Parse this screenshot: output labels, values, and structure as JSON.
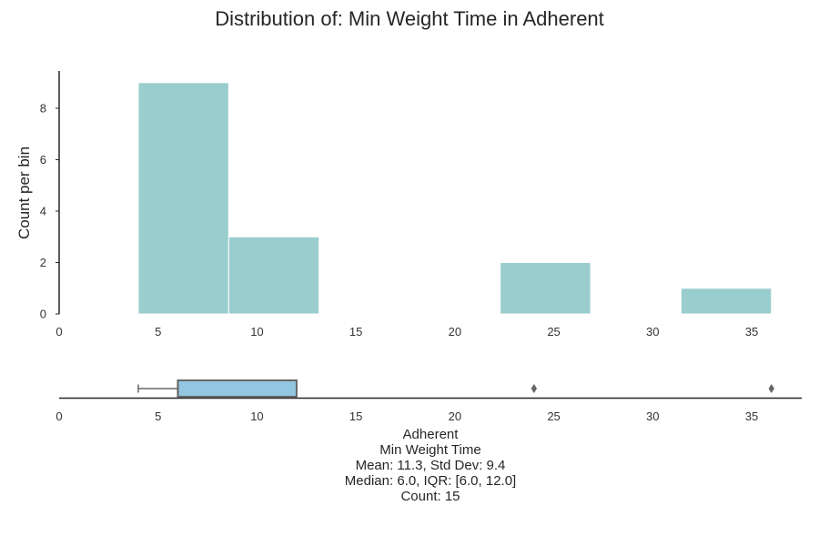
{
  "title": "Distribution of: Min Weight Time in Adherent",
  "colors": {
    "hist_bar": "#9acdcd",
    "box_fill": "#93c6e0",
    "box_edge": "#666666",
    "axis": "#262626"
  },
  "chart_data": [
    {
      "type": "histogram",
      "ylabel": "Count per bin",
      "xlim": [
        0,
        38
      ],
      "ylim": [
        0,
        9.45
      ],
      "xticks": [
        0,
        5,
        10,
        15,
        20,
        25,
        30,
        35
      ],
      "yticks": [
        0,
        2,
        4,
        6,
        8
      ],
      "bins": [
        {
          "x0": 4.0,
          "x1": 8.57,
          "count": 9
        },
        {
          "x0": 8.57,
          "x1": 13.14,
          "count": 3
        },
        {
          "x0": 13.14,
          "x1": 17.71,
          "count": 0
        },
        {
          "x0": 17.71,
          "x1": 22.29,
          "count": 0
        },
        {
          "x0": 22.29,
          "x1": 26.86,
          "count": 2
        },
        {
          "x0": 26.86,
          "x1": 31.43,
          "count": 0
        },
        {
          "x0": 31.43,
          "x1": 36.0,
          "count": 1
        }
      ]
    },
    {
      "type": "boxplot",
      "xlim": [
        0,
        38
      ],
      "xticks": [
        0,
        5,
        10,
        15,
        20,
        25,
        30,
        35
      ],
      "whisker_low": 4.0,
      "q1": 6.0,
      "median": 6.0,
      "q3": 12.0,
      "whisker_high": 12.0,
      "outliers": [
        24.0,
        36.0
      ],
      "xlabel": "Adherent"
    }
  ],
  "caption": {
    "line1": "Adherent",
    "line2": "Min Weight Time",
    "line3": "Mean: 11.3, Std Dev: 9.4",
    "line4": "Median: 6.0, IQR: [6.0, 12.0]",
    "line5": "Count: 15"
  }
}
